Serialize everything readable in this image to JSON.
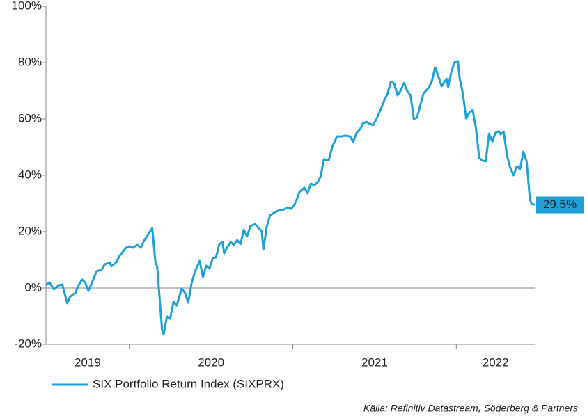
{
  "chart_data": {
    "type": "line",
    "x": [
      2019.49,
      2019.51,
      2019.54,
      2019.57,
      2019.59,
      2019.62,
      2019.64,
      2019.67,
      2019.69,
      2019.71,
      2019.73,
      2019.75,
      2019.77,
      2019.8,
      2019.83,
      2019.85,
      2019.88,
      2019.89,
      2019.92,
      2019.94,
      2019.98,
      2020.0,
      2020.02,
      2020.05,
      2020.07,
      2020.09,
      2020.14,
      2020.16,
      2020.17,
      2020.2,
      2020.21,
      2020.23,
      2020.25,
      2020.27,
      2020.29,
      2020.31,
      2020.32,
      2020.34,
      2020.36,
      2020.38,
      2020.4,
      2020.43,
      2020.45,
      2020.47,
      2020.49,
      2020.51,
      2020.53,
      2020.55,
      2020.57,
      2020.58,
      2020.6,
      2020.62,
      2020.64,
      2020.66,
      2020.68,
      2020.7,
      2020.72,
      2020.74,
      2020.77,
      2020.79,
      2020.81,
      2020.82,
      2020.84,
      2020.86,
      2020.89,
      2020.91,
      2020.94,
      2020.97,
      2020.99,
      2021.01,
      2021.03,
      2021.04,
      2021.07,
      2021.09,
      2021.11,
      2021.13,
      2021.15,
      2021.17,
      2021.19,
      2021.22,
      2021.24,
      2021.27,
      2021.3,
      2021.32,
      2021.35,
      2021.37,
      2021.39,
      2021.41,
      2021.43,
      2021.45,
      2021.47,
      2021.49,
      2021.51,
      2021.54,
      2021.56,
      2021.58,
      2021.6,
      2021.62,
      2021.64,
      2021.66,
      2021.68,
      2021.7,
      2021.72,
      2021.74,
      2021.76,
      2021.78,
      2021.8,
      2021.83,
      2021.85,
      2021.87,
      2021.89,
      2021.91,
      2021.94,
      2021.95,
      2021.97,
      2021.99,
      2022.01,
      2022.02,
      2022.04,
      2022.06,
      2022.08,
      2022.1,
      2022.12,
      2022.14,
      2022.16,
      2022.18,
      2022.2,
      2022.22,
      2022.24,
      2022.26,
      2022.27,
      2022.29,
      2022.31,
      2022.33,
      2022.35,
      2022.37,
      2022.39,
      2022.41,
      2022.43,
      2022.45,
      2022.46,
      2022.48
    ],
    "series": [
      {
        "name": "SIX Portfolio Return Index (SIXPRX)",
        "color": "#1ea0db",
        "values": [
          1,
          2,
          -0.5,
          1,
          1.2,
          -5.4,
          -3,
          -1.7,
          1,
          3,
          2,
          -1,
          1.7,
          6,
          6.4,
          8.4,
          9,
          7.7,
          9.1,
          11.4,
          14.3,
          14.8,
          14.3,
          15.3,
          14.3,
          16.8,
          21.2,
          8.9,
          7.7,
          -14.8,
          -16.5,
          -10.1,
          -10.9,
          -4.9,
          -6.2,
          -2.2,
          -0.2,
          -1.7,
          -5.2,
          1.5,
          5.7,
          9.6,
          3.9,
          7.9,
          6.9,
          10.6,
          10.9,
          15.6,
          16.3,
          12.3,
          14.6,
          16.3,
          15.3,
          17,
          15.6,
          20.7,
          18.3,
          22,
          22.7,
          21.2,
          20.2,
          13.6,
          21.7,
          25.7,
          26.9,
          27.4,
          27.7,
          28.6,
          28.1,
          29.6,
          32.3,
          34.1,
          35.6,
          33.6,
          37,
          36.5,
          37.3,
          39.5,
          45.7,
          45.4,
          49.9,
          53.8,
          53.8,
          54.1,
          53.8,
          51.9,
          55.1,
          56.3,
          58.5,
          59,
          58.3,
          57.8,
          59.8,
          63.7,
          66.7,
          69.1,
          73.3,
          72.6,
          68.4,
          70.1,
          72.8,
          69.9,
          68.4,
          60,
          60.5,
          65,
          69.1,
          71,
          73.3,
          78.3,
          75.3,
          71.6,
          74.3,
          71.4,
          76.8,
          80.2,
          80.5,
          74.6,
          69.1,
          60.2,
          62.2,
          63.2,
          56.8,
          46.2,
          45.2,
          45,
          54.8,
          52,
          55.1,
          55.6,
          54.6,
          55.3,
          47,
          42.7,
          40,
          43.2,
          42.2,
          48.4,
          45,
          31.4,
          29.9,
          29.5
        ]
      }
    ],
    "end_label": "29,5%",
    "xlim": [
      2019.49,
      2022.48
    ],
    "xticks": [
      2020,
      2021,
      2022
    ],
    "year_labels": [
      "2019",
      "2020",
      "2021",
      "2022"
    ],
    "ylim": [
      -20,
      100
    ],
    "yticks": [
      {
        "value": -20,
        "label": "-20%"
      },
      {
        "value": 0,
        "label": "0%"
      },
      {
        "value": 20,
        "label": "20%"
      },
      {
        "value": 40,
        "label": "40%"
      },
      {
        "value": 60,
        "label": "60%"
      },
      {
        "value": 80,
        "label": "80%"
      },
      {
        "value": 100,
        "label": "100%"
      }
    ],
    "source": "Källa: Refinitiv Datastream, Söderberg & Partners",
    "legend": "bottom-left",
    "grid": false
  }
}
